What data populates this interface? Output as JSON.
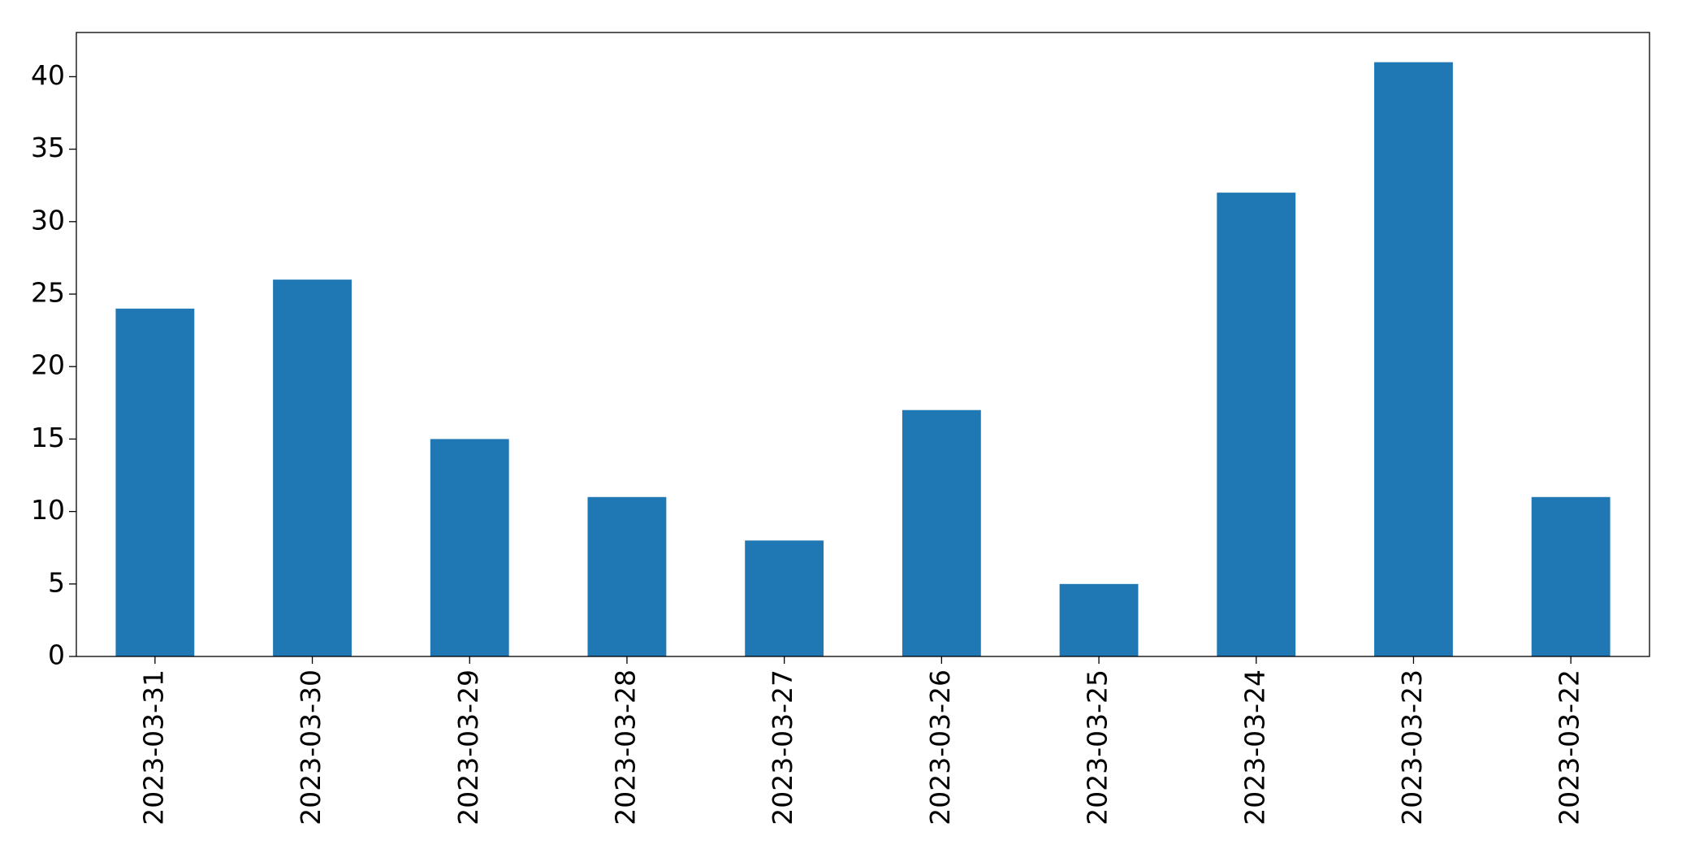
{
  "chart_data": {
    "type": "bar",
    "categories": [
      "2023-03-31",
      "2023-03-30",
      "2023-03-29",
      "2023-03-28",
      "2023-03-27",
      "2023-03-26",
      "2023-03-25",
      "2023-03-24",
      "2023-03-23",
      "2023-03-22"
    ],
    "values": [
      24,
      26,
      15,
      11,
      8,
      17,
      5,
      32,
      41,
      11
    ],
    "color": "#1f77b4",
    "ylim": [
      0,
      43.05
    ],
    "yticks": [
      0,
      5,
      10,
      15,
      20,
      25,
      30,
      35,
      40
    ],
    "grid": false
  }
}
